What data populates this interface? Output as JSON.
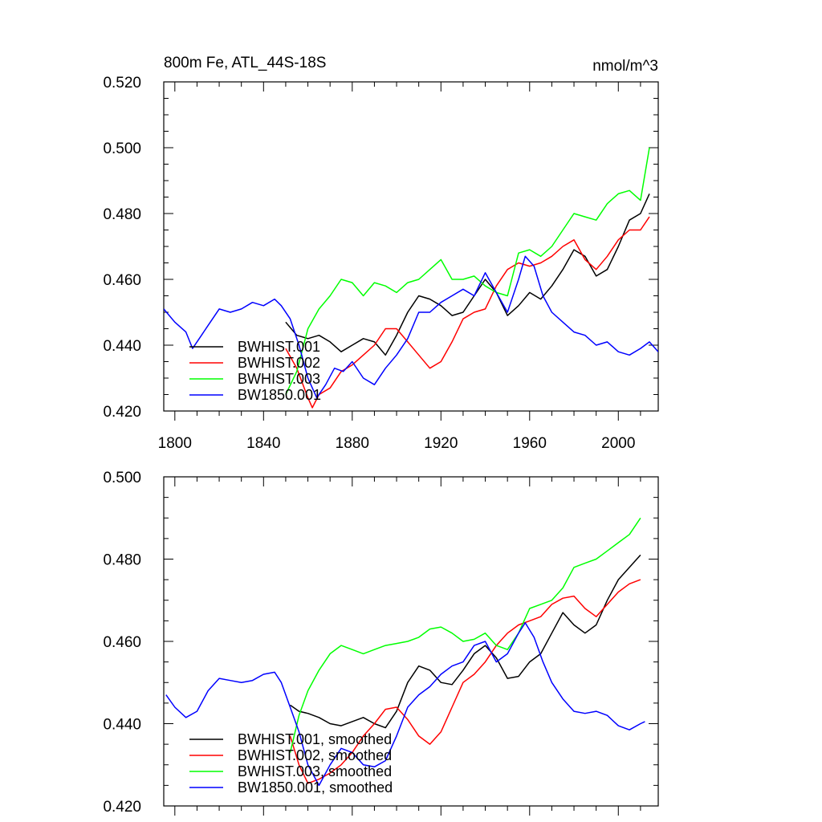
{
  "colors": {
    "black": "#000000",
    "red": "#ff0000",
    "green": "#00ff00",
    "blue": "#0000ff"
  },
  "chart_data": [
    {
      "type": "line",
      "title": "800m Fe, ATL_44S-18S",
      "units": "nmol/m^3",
      "xlabel": "",
      "ylabel": "",
      "xlim": [
        1795,
        2018
      ],
      "ylim": [
        0.42,
        0.52
      ],
      "xticks": [
        1800,
        1840,
        1880,
        1920,
        1960,
        2000
      ],
      "xtick_labels": [
        "1800",
        "1840",
        "1880",
        "1920",
        "1960",
        "2000"
      ],
      "yticks": [
        0.42,
        0.44,
        0.46,
        0.48,
        0.5,
        0.52
      ],
      "ytick_labels": [
        "0.420",
        "0.440",
        "0.460",
        "0.480",
        "0.500",
        "0.520"
      ],
      "legend_position": "bottom-left",
      "series": [
        {
          "name": "BWHIST.001",
          "color": "#000000",
          "x": [
            1850,
            1855,
            1860,
            1865,
            1870,
            1875,
            1880,
            1885,
            1890,
            1895,
            1900,
            1905,
            1910,
            1915,
            1920,
            1925,
            1930,
            1935,
            1940,
            1945,
            1950,
            1955,
            1960,
            1965,
            1970,
            1975,
            1980,
            1985,
            1990,
            1995,
            2000,
            2005,
            2010,
            2014
          ],
          "y": [
            0.447,
            0.443,
            0.442,
            0.443,
            0.441,
            0.438,
            0.44,
            0.442,
            0.441,
            0.437,
            0.443,
            0.45,
            0.455,
            0.454,
            0.452,
            0.449,
            0.45,
            0.455,
            0.46,
            0.456,
            0.449,
            0.452,
            0.456,
            0.454,
            0.458,
            0.463,
            0.469,
            0.467,
            0.461,
            0.463,
            0.47,
            0.478,
            0.48,
            0.486
          ]
        },
        {
          "name": "BWHIST.002",
          "color": "#ff0000",
          "x": [
            1850,
            1855,
            1860,
            1862,
            1865,
            1870,
            1875,
            1880,
            1885,
            1890,
            1895,
            1900,
            1905,
            1910,
            1915,
            1920,
            1925,
            1930,
            1935,
            1940,
            1945,
            1950,
            1955,
            1960,
            1965,
            1970,
            1975,
            1980,
            1985,
            1990,
            1995,
            2000,
            2005,
            2010,
            2014
          ],
          "y": [
            0.439,
            0.433,
            0.424,
            0.421,
            0.425,
            0.427,
            0.432,
            0.434,
            0.437,
            0.44,
            0.445,
            0.445,
            0.441,
            0.437,
            0.433,
            0.435,
            0.441,
            0.448,
            0.45,
            0.451,
            0.458,
            0.463,
            0.465,
            0.464,
            0.465,
            0.467,
            0.47,
            0.472,
            0.466,
            0.463,
            0.467,
            0.472,
            0.475,
            0.475,
            0.479
          ]
        },
        {
          "name": "BWHIST.003",
          "color": "#00ff00",
          "x": [
            1850,
            1855,
            1860,
            1865,
            1870,
            1875,
            1880,
            1885,
            1890,
            1895,
            1900,
            1905,
            1910,
            1915,
            1920,
            1925,
            1930,
            1935,
            1940,
            1945,
            1950,
            1955,
            1960,
            1965,
            1970,
            1975,
            1980,
            1985,
            1990,
            1995,
            2000,
            2005,
            2010,
            2014
          ],
          "y": [
            0.425,
            0.432,
            0.445,
            0.451,
            0.455,
            0.46,
            0.459,
            0.455,
            0.459,
            0.458,
            0.456,
            0.459,
            0.46,
            0.463,
            0.466,
            0.46,
            0.46,
            0.461,
            0.458,
            0.456,
            0.455,
            0.468,
            0.469,
            0.467,
            0.47,
            0.475,
            0.48,
            0.479,
            0.478,
            0.483,
            0.486,
            0.487,
            0.484,
            0.5
          ]
        },
        {
          "name": "BW1850.001",
          "color": "#0000ff",
          "x": [
            1795,
            1800,
            1805,
            1808,
            1812,
            1815,
            1820,
            1825,
            1830,
            1835,
            1840,
            1845,
            1848,
            1852,
            1856,
            1860,
            1864,
            1868,
            1872,
            1876,
            1880,
            1885,
            1890,
            1895,
            1900,
            1905,
            1910,
            1915,
            1920,
            1925,
            1930,
            1935,
            1940,
            1945,
            1950,
            1955,
            1958,
            1962,
            1966,
            1970,
            1975,
            1980,
            1985,
            1990,
            1995,
            2000,
            2005,
            2010,
            2014,
            2018
          ],
          "y": [
            0.451,
            0.447,
            0.444,
            0.439,
            0.443,
            0.446,
            0.451,
            0.45,
            0.451,
            0.453,
            0.452,
            0.454,
            0.452,
            0.448,
            0.44,
            0.43,
            0.424,
            0.428,
            0.433,
            0.432,
            0.435,
            0.43,
            0.428,
            0.433,
            0.437,
            0.442,
            0.45,
            0.45,
            0.453,
            0.455,
            0.457,
            0.455,
            0.462,
            0.456,
            0.45,
            0.46,
            0.467,
            0.464,
            0.455,
            0.45,
            0.447,
            0.444,
            0.443,
            0.44,
            0.441,
            0.438,
            0.437,
            0.439,
            0.441,
            0.438
          ]
        }
      ]
    },
    {
      "type": "line",
      "title": "",
      "xlabel": "",
      "ylabel": "",
      "xlim": [
        1795,
        2018
      ],
      "ylim": [
        0.42,
        0.5
      ],
      "xticks": [
        1800,
        1840,
        1880,
        1920,
        1960,
        2000
      ],
      "yticks": [
        0.42,
        0.44,
        0.46,
        0.48,
        0.5
      ],
      "ytick_labels": [
        "0.420",
        "0.440",
        "0.460",
        "0.480",
        "0.500"
      ],
      "legend_position": "bottom-left",
      "series": [
        {
          "name": "BWHIST.001, smoothed",
          "color": "#000000",
          "x": [
            1852,
            1856,
            1860,
            1865,
            1870,
            1875,
            1880,
            1885,
            1890,
            1895,
            1900,
            1905,
            1910,
            1915,
            1920,
            1925,
            1930,
            1935,
            1940,
            1945,
            1950,
            1955,
            1960,
            1965,
            1970,
            1975,
            1980,
            1985,
            1990,
            1995,
            2000,
            2005,
            2010
          ],
          "y": [
            0.4445,
            0.443,
            0.4425,
            0.4415,
            0.44,
            0.4395,
            0.4405,
            0.4415,
            0.44,
            0.439,
            0.443,
            0.45,
            0.454,
            0.453,
            0.45,
            0.4495,
            0.453,
            0.457,
            0.459,
            0.456,
            0.451,
            0.4515,
            0.455,
            0.457,
            0.462,
            0.467,
            0.464,
            0.462,
            0.464,
            0.47,
            0.475,
            0.478,
            0.481
          ]
        },
        {
          "name": "BWHIST.002, smoothed",
          "color": "#ff0000",
          "x": [
            1852,
            1856,
            1860,
            1865,
            1870,
            1875,
            1880,
            1885,
            1890,
            1895,
            1900,
            1905,
            1910,
            1915,
            1920,
            1925,
            1930,
            1935,
            1940,
            1945,
            1950,
            1955,
            1960,
            1965,
            1970,
            1975,
            1980,
            1985,
            1990,
            1995,
            2000,
            2005,
            2010
          ],
          "y": [
            0.437,
            0.43,
            0.4255,
            0.4265,
            0.428,
            0.43,
            0.433,
            0.437,
            0.44,
            0.4435,
            0.444,
            0.441,
            0.437,
            0.435,
            0.438,
            0.444,
            0.45,
            0.452,
            0.455,
            0.459,
            0.462,
            0.464,
            0.465,
            0.466,
            0.469,
            0.4705,
            0.471,
            0.468,
            0.466,
            0.469,
            0.472,
            0.474,
            0.475
          ]
        },
        {
          "name": "BWHIST.003, smoothed",
          "color": "#00ff00",
          "x": [
            1852,
            1856,
            1860,
            1865,
            1870,
            1875,
            1880,
            1885,
            1890,
            1895,
            1900,
            1905,
            1910,
            1915,
            1920,
            1925,
            1930,
            1935,
            1940,
            1945,
            1950,
            1955,
            1960,
            1965,
            1970,
            1975,
            1980,
            1985,
            1990,
            1995,
            2000,
            2005,
            2010
          ],
          "y": [
            0.433,
            0.442,
            0.448,
            0.453,
            0.457,
            0.459,
            0.458,
            0.457,
            0.458,
            0.459,
            0.4595,
            0.46,
            0.461,
            0.463,
            0.4635,
            0.462,
            0.46,
            0.4605,
            0.462,
            0.459,
            0.458,
            0.462,
            0.468,
            0.469,
            0.47,
            0.473,
            0.478,
            0.479,
            0.48,
            0.482,
            0.484,
            0.486,
            0.49
          ]
        },
        {
          "name": "BW1850.001, smoothed",
          "color": "#0000ff",
          "x": [
            1796,
            1800,
            1805,
            1810,
            1815,
            1820,
            1825,
            1830,
            1835,
            1840,
            1845,
            1848,
            1852,
            1856,
            1860,
            1865,
            1870,
            1875,
            1880,
            1885,
            1890,
            1895,
            1900,
            1905,
            1910,
            1915,
            1920,
            1925,
            1930,
            1935,
            1940,
            1945,
            1950,
            1955,
            1958,
            1962,
            1966,
            1970,
            1975,
            1980,
            1985,
            1990,
            1995,
            2000,
            2005,
            2010,
            2012
          ],
          "y": [
            0.447,
            0.444,
            0.4415,
            0.443,
            0.448,
            0.451,
            0.4505,
            0.45,
            0.4505,
            0.452,
            0.4525,
            0.45,
            0.444,
            0.438,
            0.43,
            0.425,
            0.43,
            0.434,
            0.433,
            0.43,
            0.4295,
            0.431,
            0.437,
            0.444,
            0.447,
            0.449,
            0.452,
            0.454,
            0.455,
            0.459,
            0.46,
            0.455,
            0.457,
            0.462,
            0.4645,
            0.461,
            0.455,
            0.45,
            0.446,
            0.443,
            0.4425,
            0.443,
            0.442,
            0.4395,
            0.4385,
            0.44,
            0.4405
          ]
        }
      ]
    }
  ]
}
